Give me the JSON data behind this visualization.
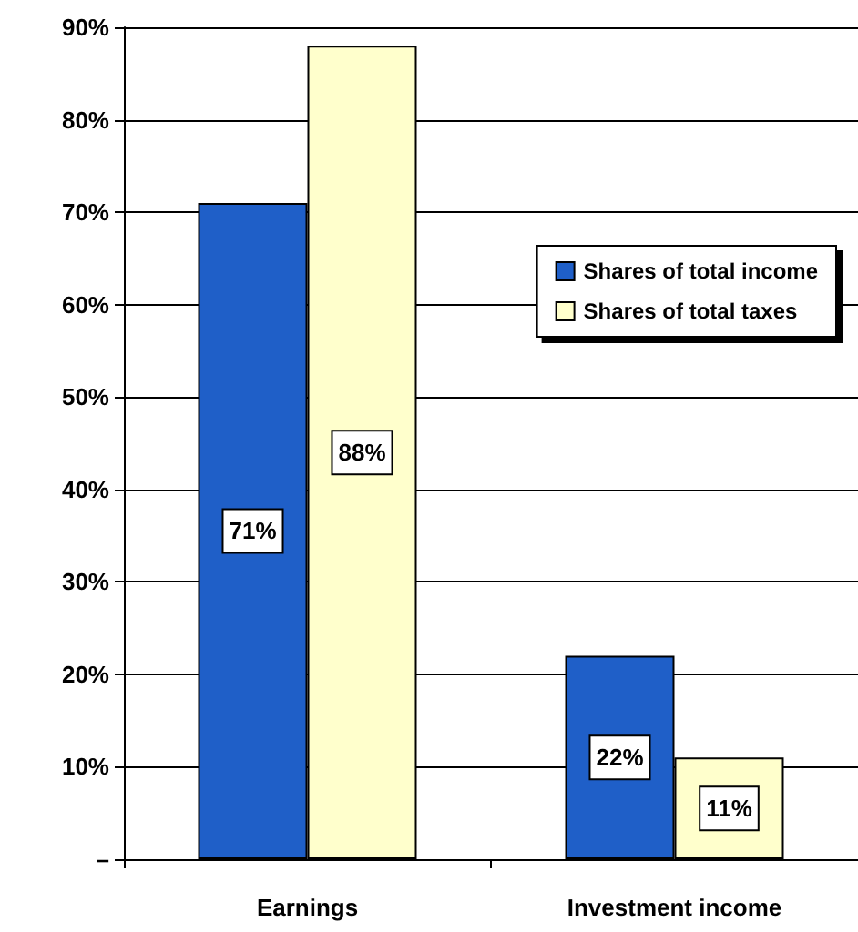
{
  "chart_data": {
    "type": "bar",
    "categories": [
      "Earnings",
      "Investment income"
    ],
    "series": [
      {
        "name": "Shares of total income",
        "color": "#1f5fc8",
        "values": [
          71,
          22
        ],
        "value_labels": [
          "71%",
          "22%"
        ]
      },
      {
        "name": "Shares of total taxes",
        "color": "#ffffcc",
        "values": [
          88,
          11
        ],
        "value_labels": [
          "88%",
          "11%"
        ]
      }
    ],
    "ylim": [
      0,
      90
    ],
    "yticks": [
      {
        "value": 0,
        "label": "–"
      },
      {
        "value": 10,
        "label": "10%"
      },
      {
        "value": 20,
        "label": "20%"
      },
      {
        "value": 30,
        "label": "30%"
      },
      {
        "value": 40,
        "label": "40%"
      },
      {
        "value": 50,
        "label": "50%"
      },
      {
        "value": 60,
        "label": "60%"
      },
      {
        "value": 70,
        "label": "70%"
      },
      {
        "value": 80,
        "label": "80%"
      },
      {
        "value": 90,
        "label": "90%"
      }
    ],
    "grid": "y",
    "legend": "right"
  }
}
